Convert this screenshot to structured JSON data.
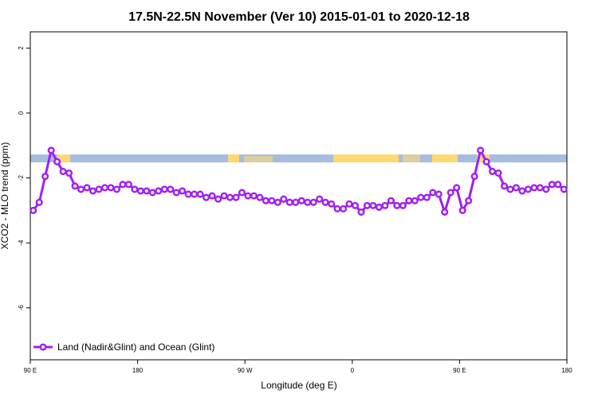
{
  "chart_data": {
    "type": "line",
    "title": "17.5N-22.5N November (Ver 10)   2015-01-01 to 2020-12-18",
    "x_label": "Longitude (deg E)",
    "y_label": "XCO2 - MLO trend (ppm)",
    "xlim": [
      90,
      540
    ],
    "ylim": [
      -7.6,
      2.5
    ],
    "xticks": [
      {
        "value": 90,
        "label": "90 E"
      },
      180,
      {
        "value": 270,
        "label": "90 W"
      },
      {
        "value": 360,
        "label": "0"
      },
      {
        "value": 450,
        "label": "90 E"
      },
      {
        "value": 540,
        "label": "180"
      }
    ],
    "yticks": [
      2,
      0,
      -2,
      -4,
      -6
    ],
    "legend": "bottom-left",
    "x": [
      92.5,
      97.5,
      102.5,
      107.5,
      112.5,
      117.5,
      122.5,
      127.5,
      132.5,
      137.5,
      142.5,
      147.5,
      152.5,
      157.5,
      162.5,
      167.5,
      172.5,
      177.5,
      182.5,
      187.5,
      192.5,
      197.5,
      202.5,
      207.5,
      212.5,
      217.5,
      222.5,
      227.5,
      232.5,
      237.5,
      242.5,
      247.5,
      252.5,
      257.5,
      262.5,
      267.5,
      272.5,
      277.5,
      282.5,
      287.5,
      292.5,
      297.5,
      302.5,
      307.5,
      312.5,
      317.5,
      322.5,
      327.5,
      332.5,
      337.5,
      342.5,
      347.5,
      352.5,
      357.5,
      362.5,
      367.5,
      372.5,
      377.5,
      382.5,
      387.5,
      392.5,
      397.5,
      402.5,
      407.5,
      412.5,
      417.5,
      422.5,
      427.5,
      432.5,
      437.5,
      442.5,
      447.5,
      452.5,
      457.5,
      462.5,
      467.5,
      472.5,
      477.5,
      482.5,
      487.5,
      492.5,
      497.5,
      502.5,
      507.5,
      512.5,
      517.5,
      522.5,
      527.5,
      532.5,
      537.5
    ],
    "series": [
      {
        "name": "Land (Nadir&Glint) and Ocean (Glint)",
        "color": "#a020f0",
        "values": [
          -3.0,
          -2.75,
          -1.95,
          -1.15,
          -1.5,
          -1.8,
          -1.85,
          -2.25,
          -2.35,
          -2.3,
          -2.4,
          -2.35,
          -2.3,
          -2.3,
          -2.35,
          -2.2,
          -2.2,
          -2.35,
          -2.4,
          -2.4,
          -2.45,
          -2.4,
          -2.35,
          -2.35,
          -2.45,
          -2.4,
          -2.5,
          -2.5,
          -2.5,
          -2.6,
          -2.55,
          -2.65,
          -2.55,
          -2.6,
          -2.6,
          -2.45,
          -2.55,
          -2.55,
          -2.6,
          -2.7,
          -2.7,
          -2.75,
          -2.65,
          -2.75,
          -2.75,
          -2.7,
          -2.75,
          -2.75,
          -2.65,
          -2.75,
          -2.8,
          -2.95,
          -2.95,
          -2.8,
          -2.85,
          -3.05,
          -2.85,
          -2.85,
          -2.9,
          -2.85,
          -2.7,
          -2.85,
          -2.85,
          -2.7,
          -2.7,
          -2.6,
          -2.6,
          -2.45,
          -2.5,
          -3.05,
          -2.45,
          -2.3,
          -3.0,
          -2.7,
          -1.95,
          -1.15,
          -1.5,
          -1.8,
          -1.85,
          -2.25,
          -2.35,
          -2.3,
          -2.4,
          -2.35,
          -2.3,
          -2.3,
          -2.35,
          -2.2,
          -2.2,
          -2.35
        ]
      }
    ]
  }
}
